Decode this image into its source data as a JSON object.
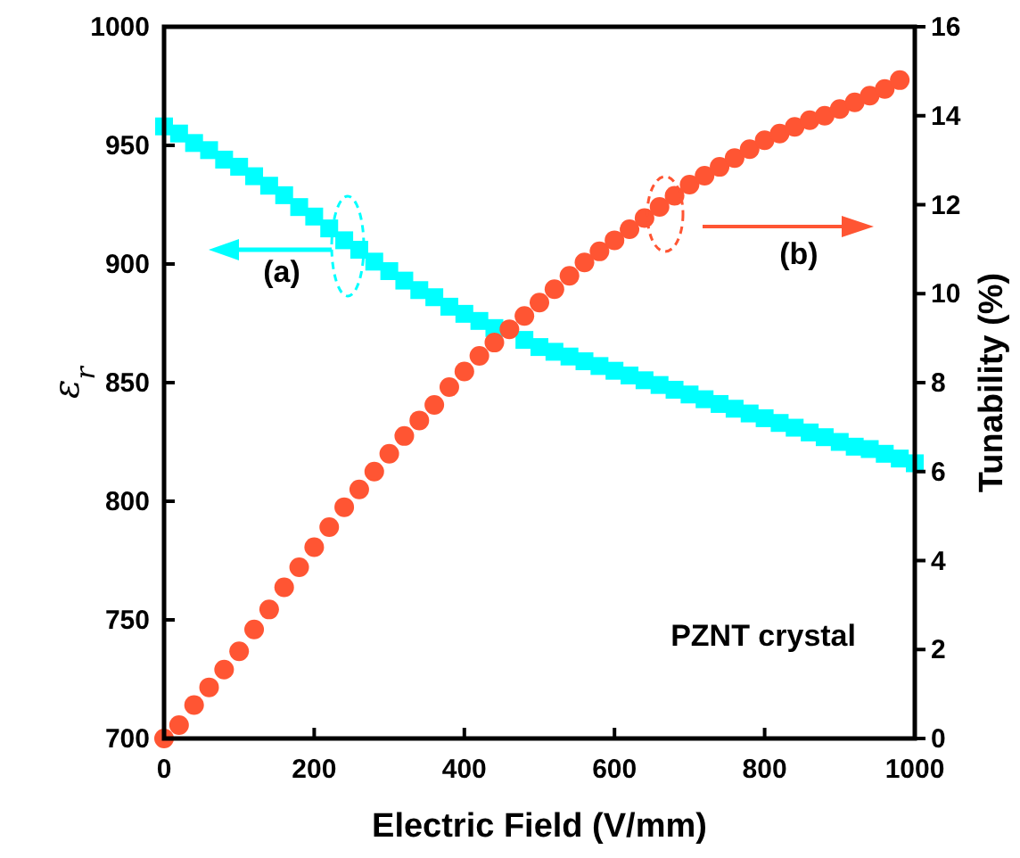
{
  "chart_data": {
    "type": "scatter",
    "xlabel": "Electric Field (V/mm)",
    "ylabel": "ε$_{r}$",
    "y2label": "Tunability (%)",
    "xlim": [
      0,
      1000
    ],
    "xticks": [
      0,
      200,
      400,
      600,
      800,
      1000
    ],
    "ylim": [
      700,
      1000
    ],
    "yticks": [
      700,
      750,
      800,
      850,
      900,
      950,
      1000
    ],
    "y2lim": [
      0,
      16
    ],
    "y2ticks": [
      0,
      2,
      4,
      6,
      8,
      10,
      12,
      14,
      16
    ],
    "annotations": [
      "(a)",
      "(b)",
      "PZNT crystal"
    ],
    "series": [
      {
        "color": "#00ffff",
        "marker": "square",
        "x": [
          0,
          20,
          40,
          60,
          80,
          100,
          120,
          140,
          160,
          180,
          200,
          220,
          240,
          260,
          280,
          300,
          320,
          340,
          360,
          380,
          400,
          420,
          440,
          480,
          500,
          520,
          540,
          560,
          580,
          600,
          620,
          640,
          660,
          680,
          700,
          720,
          740,
          760,
          780,
          800,
          820,
          840,
          860,
          880,
          900,
          920,
          940,
          960,
          980,
          1000
        ],
        "values": [
          958,
          955,
          951,
          948,
          944,
          941,
          937,
          933,
          929,
          924,
          920,
          915,
          910,
          906,
          901,
          897,
          893,
          889,
          886,
          882,
          879,
          876,
          873,
          868,
          865,
          863,
          861,
          859,
          857,
          855,
          853,
          851,
          849,
          847,
          845,
          843,
          841,
          839,
          837,
          835,
          833,
          831,
          829,
          827,
          825,
          823,
          822,
          820,
          818,
          816
        ]
      },
      {
        "color": "#ff5533",
        "marker": "circle",
        "axis": "y2",
        "x": [
          0,
          20,
          40,
          60,
          80,
          100,
          120,
          140,
          160,
          180,
          200,
          220,
          240,
          260,
          280,
          300,
          320,
          340,
          360,
          380,
          400,
          420,
          440,
          460,
          480,
          500,
          520,
          540,
          560,
          580,
          600,
          620,
          640,
          660,
          680,
          700,
          720,
          740,
          760,
          780,
          800,
          820,
          840,
          860,
          880,
          900,
          920,
          940,
          960,
          980
        ],
        "values": [
          0,
          0.3,
          0.75,
          1.15,
          1.55,
          1.96,
          2.45,
          2.9,
          3.4,
          3.85,
          4.3,
          4.75,
          5.2,
          5.6,
          6.0,
          6.4,
          6.8,
          7.15,
          7.5,
          7.9,
          8.25,
          8.6,
          8.9,
          9.2,
          9.5,
          9.8,
          10.1,
          10.4,
          10.7,
          10.95,
          11.2,
          11.45,
          11.7,
          11.95,
          12.2,
          12.45,
          12.65,
          12.85,
          13.05,
          13.25,
          13.45,
          13.6,
          13.75,
          13.9,
          14.0,
          14.15,
          14.3,
          14.45,
          14.6,
          14.8
        ]
      }
    ]
  }
}
